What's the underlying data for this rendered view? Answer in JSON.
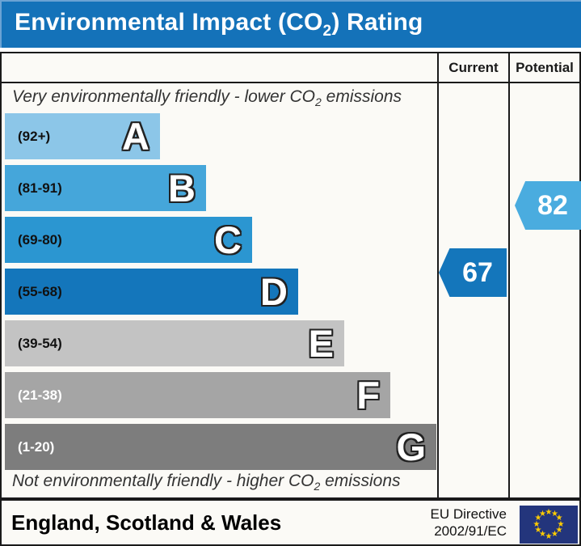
{
  "title": {
    "prefix": "Environmental Impact (CO",
    "sub": "2",
    "suffix": ") Rating",
    "bar_color": "#1472b9"
  },
  "columns": {
    "current": "Current",
    "potential": "Potential"
  },
  "captions": {
    "top": {
      "prefix": "Very environmentally friendly - lower CO",
      "sub": "2",
      "suffix": " emissions"
    },
    "bottom": {
      "prefix": "Not environmentally friendly - higher CO",
      "sub": "2",
      "suffix": " emissions"
    }
  },
  "chart_data": {
    "type": "bar",
    "title": "Environmental Impact (CO2) Rating",
    "categories": [
      "A",
      "B",
      "C",
      "D",
      "E",
      "F",
      "G"
    ],
    "bands": [
      {
        "letter": "A",
        "range_label": "(92+)",
        "range_min": 92,
        "range_max": 100,
        "color": "#8cc6e8",
        "label_color": "#111111"
      },
      {
        "letter": "B",
        "range_label": "(81-91)",
        "range_min": 81,
        "range_max": 91,
        "color": "#45a6da",
        "label_color": "#111111"
      },
      {
        "letter": "C",
        "range_label": "(69-80)",
        "range_min": 69,
        "range_max": 80,
        "color": "#2b96d1",
        "label_color": "#111111"
      },
      {
        "letter": "D",
        "range_label": "(55-68)",
        "range_min": 55,
        "range_max": 68,
        "color": "#1476bb",
        "label_color": "#111111"
      },
      {
        "letter": "E",
        "range_label": "(39-54)",
        "range_min": 39,
        "range_max": 54,
        "color": "#c3c3c3",
        "label_color": "#111111"
      },
      {
        "letter": "F",
        "range_label": "(21-38)",
        "range_min": 21,
        "range_max": 38,
        "color": "#a5a5a5",
        "label_color": "#ffffff"
      },
      {
        "letter": "G",
        "range_label": "(1-20)",
        "range_min": 1,
        "range_max": 20,
        "color": "#7d7d7d",
        "label_color": "#ffffff"
      }
    ],
    "current": {
      "value": "67",
      "band": "D",
      "color": "#1476bb"
    },
    "potential": {
      "value": "82",
      "band": "B",
      "color": "#4aacdf"
    }
  },
  "footer": {
    "region": "England, Scotland & Wales",
    "directive_line1": "EU Directive",
    "directive_line2": "2002/91/EC",
    "eu_flag": {
      "color": "#23357c",
      "star_color": "#ffcc00",
      "star_count": 12,
      "star_glyph": "★"
    }
  }
}
